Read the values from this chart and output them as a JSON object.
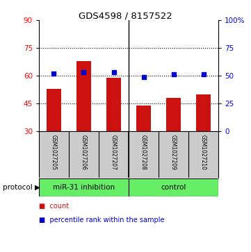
{
  "title": "GDS4598 / 8157522",
  "samples": [
    "GSM1027205",
    "GSM1027206",
    "GSM1027207",
    "GSM1027208",
    "GSM1027209",
    "GSM1027210"
  ],
  "counts": [
    53,
    68,
    59,
    44,
    48,
    50
  ],
  "percentiles": [
    52,
    53,
    53,
    49,
    51,
    51
  ],
  "bar_color": "#cc1111",
  "dot_color": "#0000cc",
  "ylim_left": [
    30,
    90
  ],
  "ylim_right": [
    0,
    100
  ],
  "yticks_left": [
    30,
    45,
    60,
    75,
    90
  ],
  "yticks_right": [
    0,
    25,
    50,
    75,
    100
  ],
  "ytick_labels_right": [
    "0",
    "25",
    "50",
    "75",
    "100%"
  ],
  "grid_yticks": [
    45,
    60,
    75
  ],
  "groups": [
    {
      "label": "miR-31 inhibition",
      "start": 0,
      "end": 3
    },
    {
      "label": "control",
      "start": 3,
      "end": 6
    }
  ],
  "protocol_label": "protocol",
  "legend_count_label": "count",
  "legend_pct_label": "percentile rank within the sample",
  "bg_color": "#ffffff",
  "panel_bg": "#cccccc",
  "protocol_bg": "#66ee66"
}
